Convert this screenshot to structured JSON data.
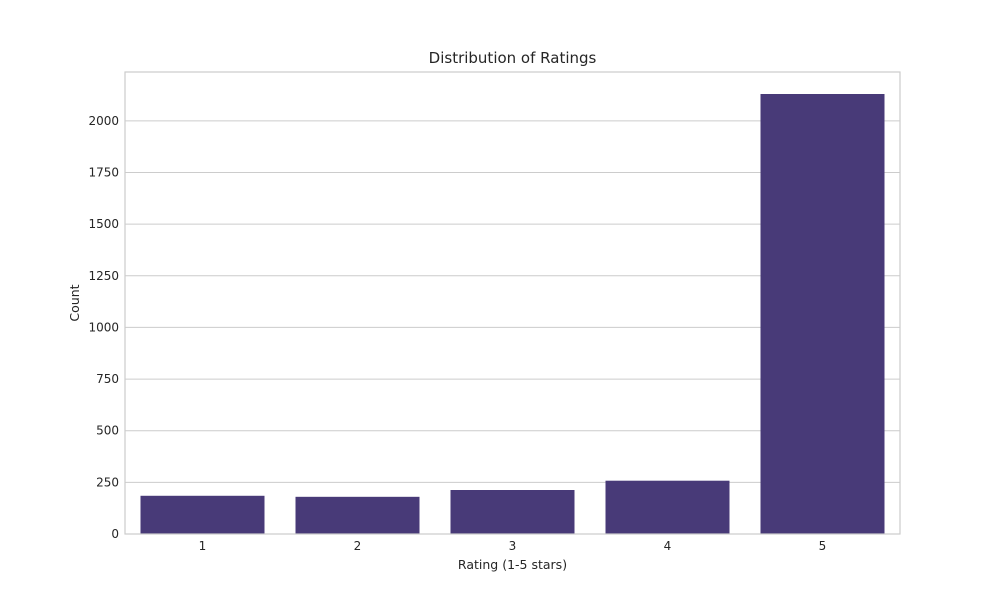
{
  "chart_data": {
    "type": "bar",
    "title": "Distribution of Ratings",
    "xlabel": "Rating (1-5 stars)",
    "ylabel": "Count",
    "categories": [
      "1",
      "2",
      "3",
      "4",
      "5"
    ],
    "values": [
      185,
      180,
      213,
      258,
      2130
    ],
    "ylim": [
      0,
      2130
    ],
    "yticks": [
      0,
      250,
      500,
      750,
      1000,
      1250,
      1500,
      1750,
      2000
    ],
    "ytick_labels": [
      "0",
      "250",
      "500",
      "750",
      "1000",
      "1250",
      "1500",
      "1750",
      "2000"
    ],
    "grid": "horizontal",
    "legend": "none",
    "bar_color": "#483a78"
  }
}
